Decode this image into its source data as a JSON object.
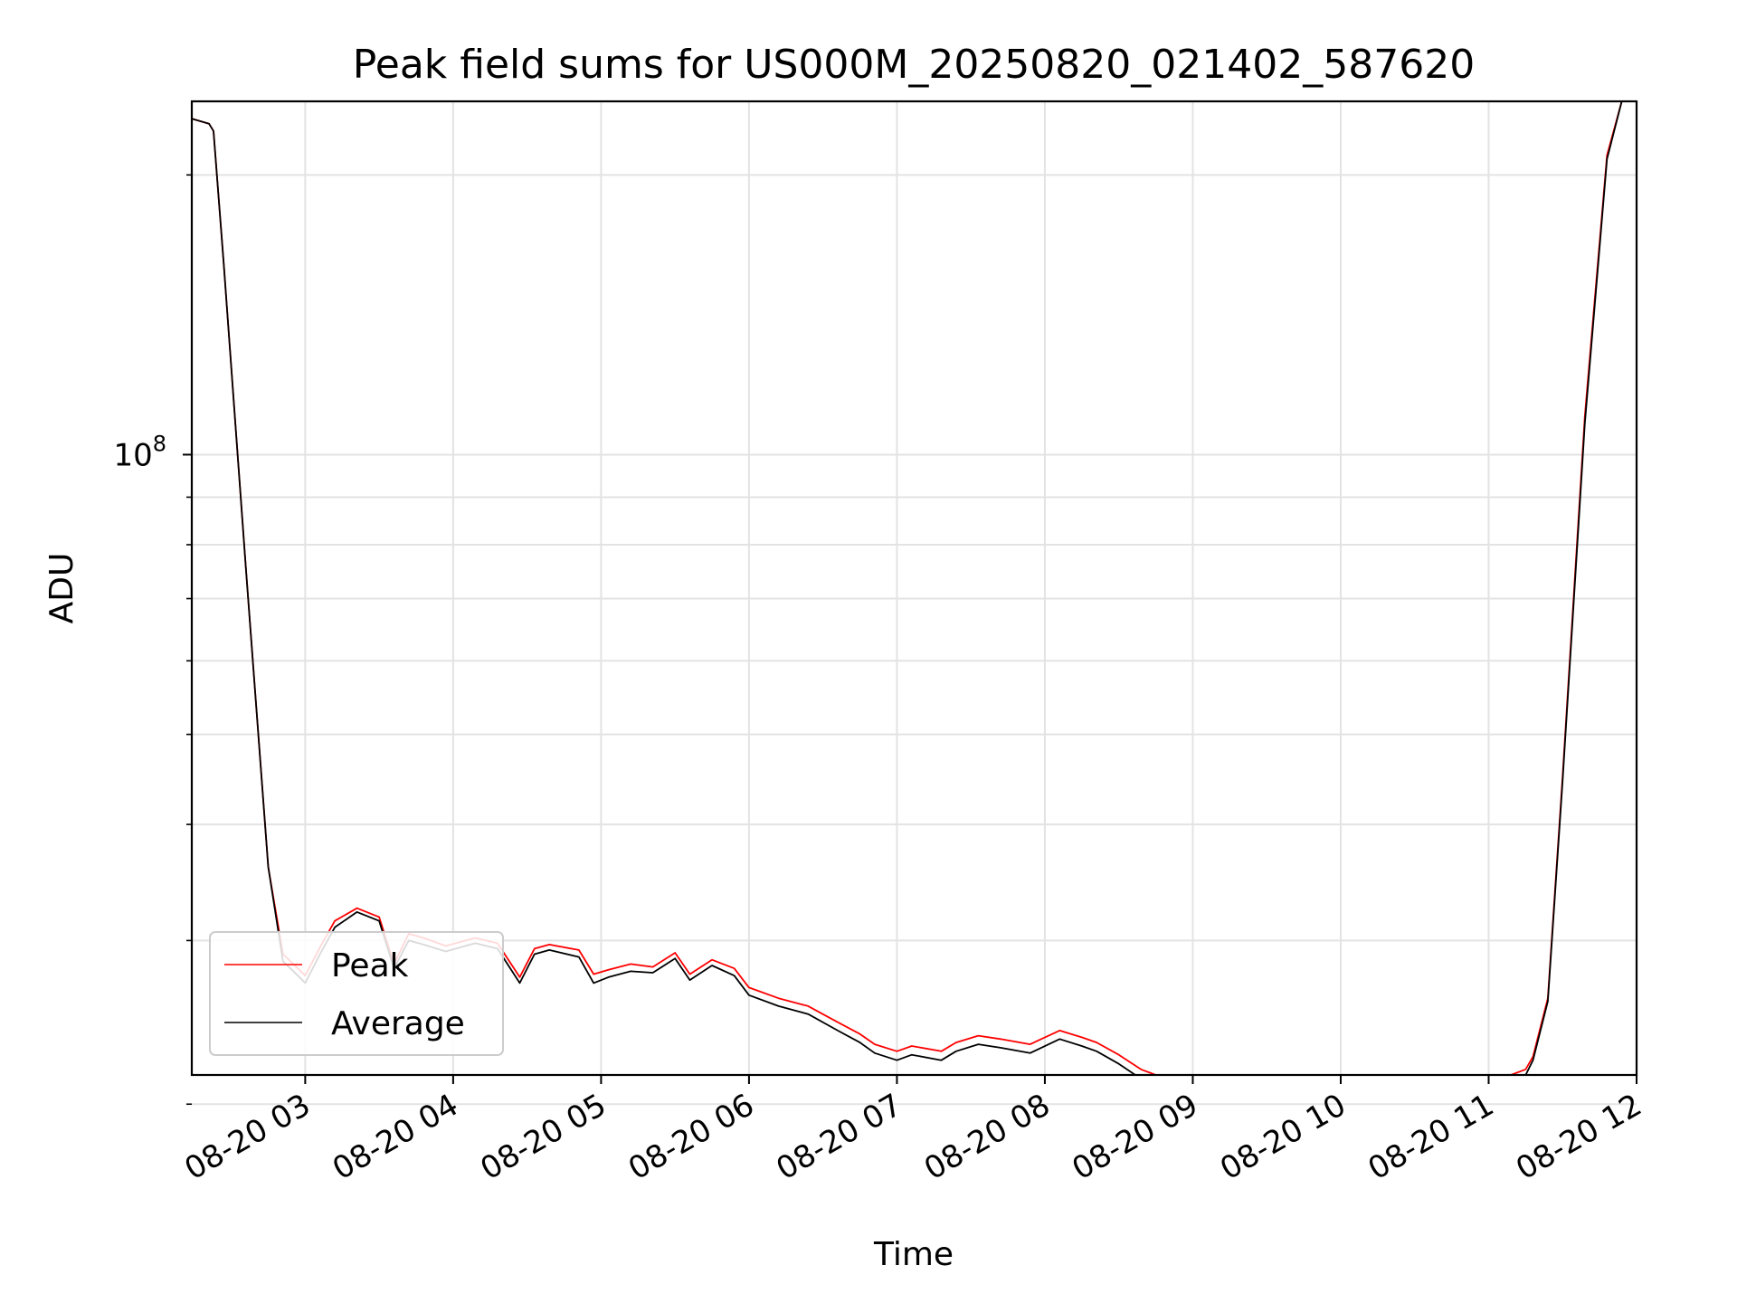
{
  "chart_data": {
    "type": "line",
    "title": "Peak field sums for US000M_20250820_021402_587620",
    "xlabel": "Time",
    "ylabel": "ADU",
    "x_range": [
      "08-20 02:14",
      "08-20 12:00"
    ],
    "y_range": [
      21500000,
      240000000
    ],
    "y_scale": "log",
    "y_tick_labels": [
      {
        "value": 100000000,
        "base": "10",
        "exponent": "8"
      }
    ],
    "y_minor_ticks": [
      20000000,
      30000000,
      40000000,
      50000000,
      60000000,
      70000000,
      80000000,
      90000000,
      200000000
    ],
    "x_tick_labels": [
      "08-20 03",
      "08-20 04",
      "08-20 05",
      "08-20 06",
      "08-20 07",
      "08-20 08",
      "08-20 09",
      "08-20 10",
      "08-20 11",
      "08-20 12"
    ],
    "x_ticks_hours": [
      3,
      4,
      5,
      6,
      7,
      8,
      9,
      10,
      11,
      12
    ],
    "grid": true,
    "legend_position": "lower-left",
    "series": [
      {
        "name": "Peak",
        "color": "#ff0000",
        "x_hours": [
          2.23,
          2.35,
          2.38,
          2.45,
          2.6,
          2.75,
          2.85,
          2.95,
          3.0,
          3.1,
          3.2,
          3.35,
          3.5,
          3.6,
          3.7,
          3.8,
          3.95,
          4.15,
          4.3,
          4.45,
          4.55,
          4.65,
          4.85,
          4.95,
          5.05,
          5.2,
          5.35,
          5.5,
          5.6,
          5.75,
          5.9,
          6.0,
          6.2,
          6.4,
          6.6,
          6.75,
          6.85,
          7.0,
          7.1,
          7.3,
          7.4,
          7.55,
          7.7,
          7.9,
          8.1,
          8.25,
          8.35,
          8.5,
          8.65,
          8.8,
          9.0,
          9.5,
          10.0,
          10.5,
          10.8,
          11.0,
          11.15,
          11.25,
          11.3,
          11.4,
          11.5,
          11.65,
          11.8,
          11.9
        ],
        "values": [
          230000000,
          227000000,
          223000000,
          160000000,
          75000000,
          36000000,
          29000000,
          28000000,
          27500000,
          29500000,
          31500000,
          32500000,
          31800000,
          28300000,
          30500000,
          30200000,
          29600000,
          30200000,
          29800000,
          27400000,
          29400000,
          29700000,
          29300000,
          27600000,
          27900000,
          28300000,
          28100000,
          29100000,
          27600000,
          28600000,
          28000000,
          26700000,
          26000000,
          25500000,
          24500000,
          23800000,
          23200000,
          22800000,
          23100000,
          22800000,
          23300000,
          23700000,
          23500000,
          23200000,
          24000000,
          23600000,
          23300000,
          22600000,
          21800000,
          21350000,
          21300000,
          21250000,
          21250000,
          21300000,
          21400000,
          21400000,
          21500000,
          21800000,
          22500000,
          26000000,
          45000000,
          110000000,
          210000000,
          240000000
        ]
      },
      {
        "name": "Average",
        "color": "#000000",
        "x_hours": [
          2.23,
          2.35,
          2.38,
          2.45,
          2.6,
          2.75,
          2.85,
          2.95,
          3.0,
          3.1,
          3.2,
          3.35,
          3.5,
          3.6,
          3.7,
          3.8,
          3.95,
          4.15,
          4.3,
          4.45,
          4.55,
          4.65,
          4.85,
          4.95,
          5.05,
          5.2,
          5.35,
          5.5,
          5.6,
          5.75,
          5.9,
          6.0,
          6.2,
          6.4,
          6.6,
          6.75,
          6.85,
          7.0,
          7.1,
          7.3,
          7.4,
          7.55,
          7.7,
          7.9,
          8.1,
          8.25,
          8.35,
          8.5,
          8.65,
          8.8,
          9.0,
          9.5,
          10.0,
          10.5,
          10.8,
          11.0,
          11.15,
          11.25,
          11.3,
          11.4,
          11.5,
          11.65,
          11.8,
          11.9
        ],
        "values": [
          230000000,
          227000000,
          223000000,
          160000000,
          75000000,
          36000000,
          28500000,
          27500000,
          27000000,
          29000000,
          31000000,
          32200000,
          31500000,
          28000000,
          30000000,
          29700000,
          29200000,
          29800000,
          29400000,
          27000000,
          29000000,
          29300000,
          28800000,
          27000000,
          27400000,
          27800000,
          27700000,
          28700000,
          27200000,
          28200000,
          27500000,
          26200000,
          25500000,
          25000000,
          24000000,
          23300000,
          22700000,
          22300000,
          22600000,
          22300000,
          22800000,
          23200000,
          23000000,
          22700000,
          23500000,
          23100000,
          22800000,
          22100000,
          21300000,
          20900000,
          20850000,
          20850000,
          20850000,
          20900000,
          21000000,
          21050000,
          21150000,
          21500000,
          22300000,
          25800000,
          44500000,
          108000000,
          208000000,
          240000000
        ]
      }
    ]
  }
}
